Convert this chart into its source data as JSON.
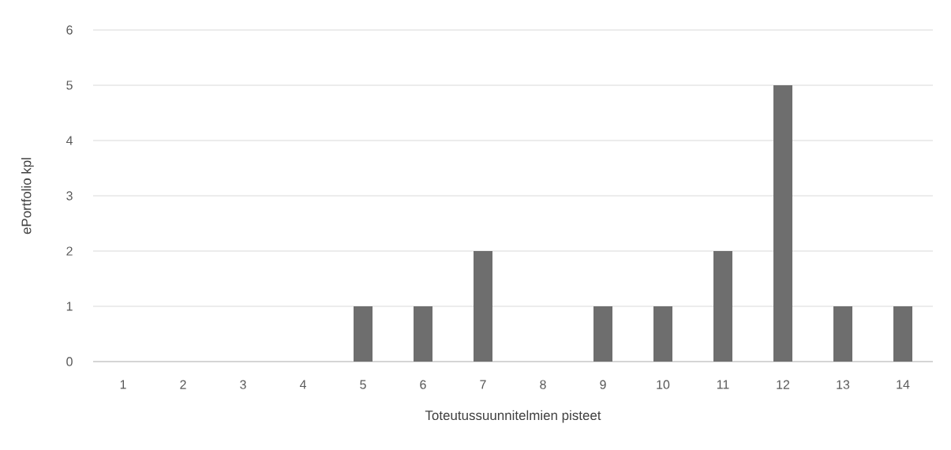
{
  "chart_data": {
    "type": "bar",
    "xlabel": "Toteutussuunnitelmien pisteet",
    "ylabel": "ePortfolio kpl",
    "categories": [
      "1",
      "2",
      "3",
      "4",
      "5",
      "6",
      "7",
      "8",
      "9",
      "10",
      "11",
      "12",
      "13",
      "14"
    ],
    "values": [
      0,
      0,
      0,
      0,
      1,
      1,
      2,
      0,
      1,
      1,
      2,
      5,
      1,
      1
    ],
    "color": "#6e6e6e",
    "ylim": [
      0,
      6
    ],
    "yticks": [
      0,
      1,
      2,
      3,
      4,
      5,
      6
    ],
    "grid": "y"
  }
}
